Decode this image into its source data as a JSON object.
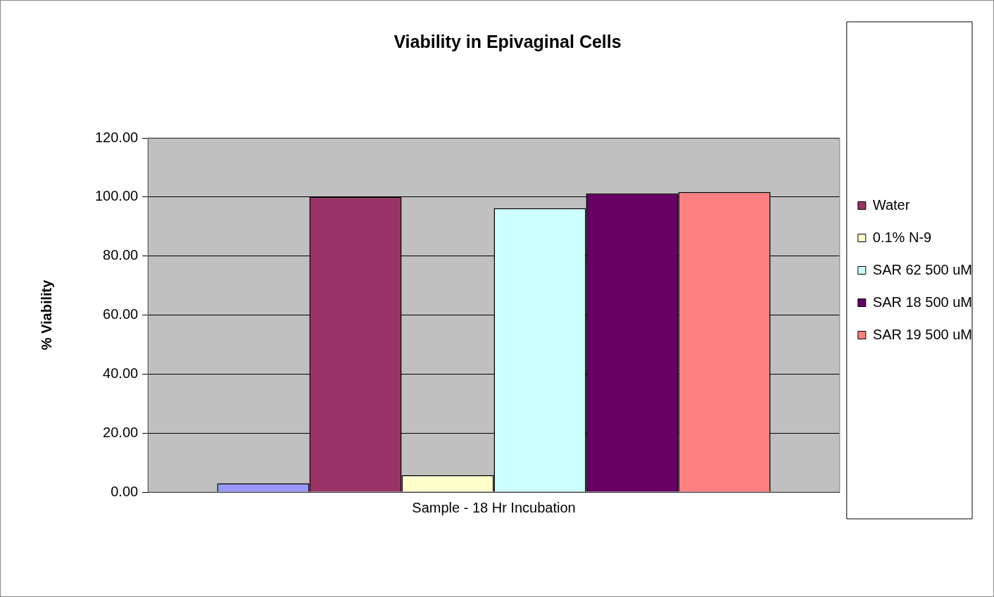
{
  "chart_data": {
    "type": "bar",
    "title": "Viability in Epivaginal Cells",
    "ylabel": "% Viability",
    "categories": [
      "Sample - 18 Hr Incubation"
    ],
    "series": [
      {
        "color": "#9999ff",
        "values": [
          3
        ]
      },
      {
        "name": "Water",
        "color": "#993366",
        "values": [
          100
        ]
      },
      {
        "name": "0.1% N-9",
        "color": "#ffffcc",
        "values": [
          5.7
        ]
      },
      {
        "name": "SAR 62 500 uM",
        "color": "#ccffff",
        "values": [
          96.2
        ]
      },
      {
        "name": "SAR 18 500 uM",
        "color": "#660066",
        "values": [
          101.2
        ]
      },
      {
        "name": "SAR 19 500 uM",
        "color": "#ff8080",
        "values": [
          101.7
        ]
      }
    ],
    "ylim": [
      0,
      120
    ],
    "yticks": [
      {
        "value": 0,
        "label": "0.00"
      },
      {
        "value": 20,
        "label": "20.00"
      },
      {
        "value": 40,
        "label": "40.00"
      },
      {
        "value": 60,
        "label": "60.00"
      },
      {
        "value": 80,
        "label": "80.00"
      },
      {
        "value": 100,
        "label": "100.00"
      },
      {
        "value": 120,
        "label": "120.00"
      }
    ],
    "grid": "y",
    "legend": "right"
  }
}
